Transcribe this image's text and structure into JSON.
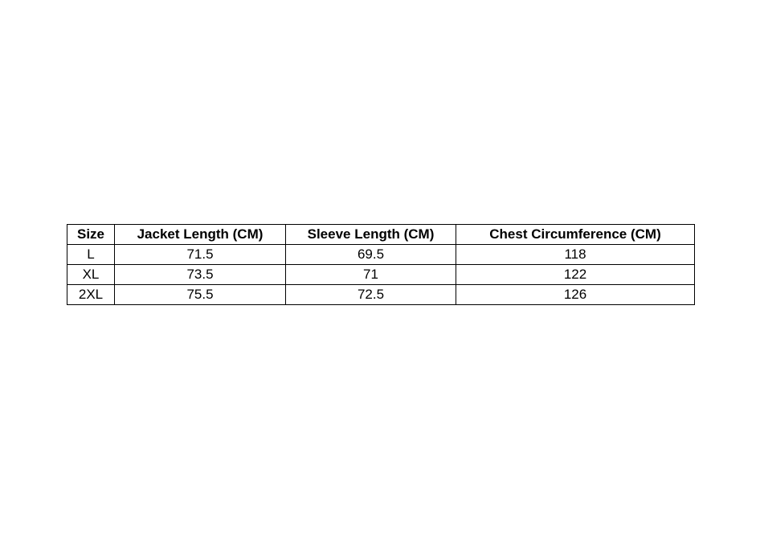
{
  "table": {
    "headers": [
      "Size",
      "Jacket Length (CM)",
      "Sleeve Length (CM)",
      "Chest Circumference (CM)"
    ],
    "rows": [
      [
        "L",
        "71.5",
        "69.5",
        "118"
      ],
      [
        "XL",
        "73.5",
        "71",
        "122"
      ],
      [
        "2XL",
        "75.5",
        "72.5",
        "126"
      ]
    ]
  }
}
